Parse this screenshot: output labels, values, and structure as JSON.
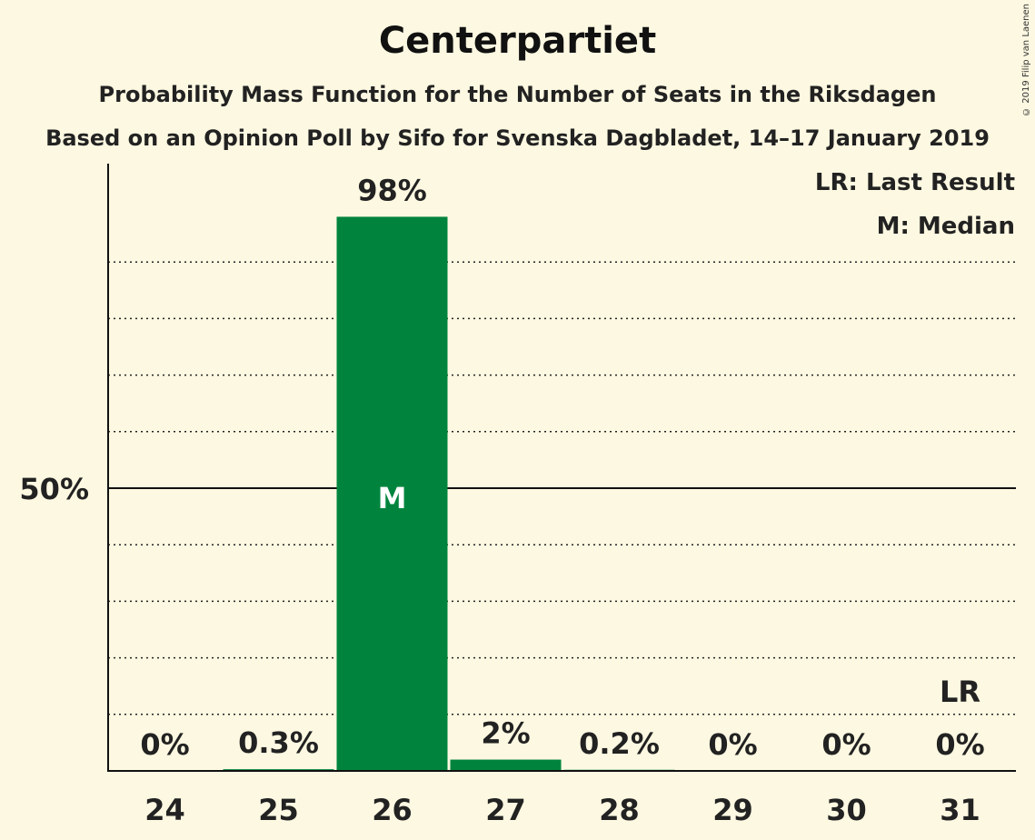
{
  "chart_data": {
    "type": "bar",
    "title": "Centerpartiet",
    "subtitle": "Probability Mass Function for the Number of Seats in the Riksdagen",
    "subtitle2": "Based on an Opinion Poll by Sifo for Svenska Dagbladet, 14–17 January 2019",
    "categories": [
      "24",
      "25",
      "26",
      "27",
      "28",
      "29",
      "30",
      "31"
    ],
    "values": [
      0,
      0.3,
      98,
      2,
      0.2,
      0,
      0,
      0
    ],
    "value_labels": [
      "0%",
      "0.3%",
      "98%",
      "2%",
      "0.2%",
      "0%",
      "0%",
      "0%"
    ],
    "ylim": [
      0,
      100
    ],
    "y_tick_label": "50%",
    "y_tick_value": 50,
    "grid": true,
    "bar_color": "#00843d",
    "median_category": "26",
    "median_marker": "M",
    "last_result_category": "31",
    "last_result_marker": "LR",
    "legend": [
      "LR: Last Result",
      "M: Median"
    ],
    "legend_position": "top-right"
  },
  "copyright": "© 2019 Filip van Laenen"
}
